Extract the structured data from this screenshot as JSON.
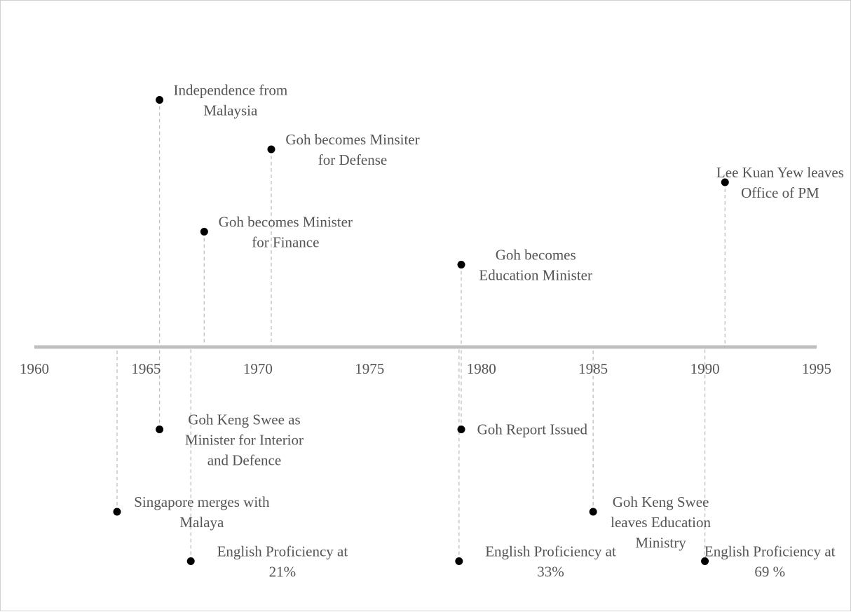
{
  "chart_data": {
    "type": "scatter",
    "title": "",
    "xlabel": "",
    "ylabel": "",
    "xlim": [
      1960,
      1995
    ],
    "xticks": [
      "1960",
      "1965",
      "1970",
      "1975",
      "1980",
      "1985",
      "1990",
      "1995"
    ],
    "grid": false,
    "legend": "none",
    "colors": {
      "axis": "#bfbfbf",
      "connector": "#bfbfbf",
      "marker": "#000000",
      "text": "#555555"
    },
    "events": [
      {
        "x": 1965.6,
        "y": 7.5,
        "lines": [
          "Independence from",
          "Malaysia"
        ]
      },
      {
        "x": 1970.6,
        "y": 6.0,
        "lines": [
          "Goh becomes Minsiter",
          "for Defense"
        ]
      },
      {
        "x": 1990.9,
        "y": 5.0,
        "lines": [
          "Lee Kuan Yew leaves",
          "Office of PM"
        ]
      },
      {
        "x": 1967.6,
        "y": 3.5,
        "lines": [
          "Goh becomes Minister",
          "for Finance"
        ]
      },
      {
        "x": 1979.1,
        "y": 2.5,
        "lines": [
          "Goh becomes",
          "Education Minister"
        ]
      },
      {
        "x": 1965.6,
        "y": -2.5,
        "lines": [
          "Goh Keng Swee as",
          "Minister for Interior",
          "and Defence"
        ]
      },
      {
        "x": 1979.1,
        "y": -2.5,
        "lines": [
          "Goh Report Issued"
        ]
      },
      {
        "x": 1963.7,
        "y": -5.0,
        "lines": [
          "Singapore merges with",
          "Malaya"
        ]
      },
      {
        "x": 1985.0,
        "y": -5.0,
        "lines": [
          "Goh Keng Swee",
          "leaves Education",
          "Ministry"
        ]
      },
      {
        "x": 1967.0,
        "y": -6.5,
        "lines": [
          "English  Proficiency at",
          "21%"
        ]
      },
      {
        "x": 1979.0,
        "y": -6.5,
        "lines": [
          "English  Proficiency at",
          "33%"
        ]
      },
      {
        "x": 1990.0,
        "y": -6.5,
        "lines": [
          "English Proficiency at",
          "69 %"
        ]
      }
    ]
  }
}
